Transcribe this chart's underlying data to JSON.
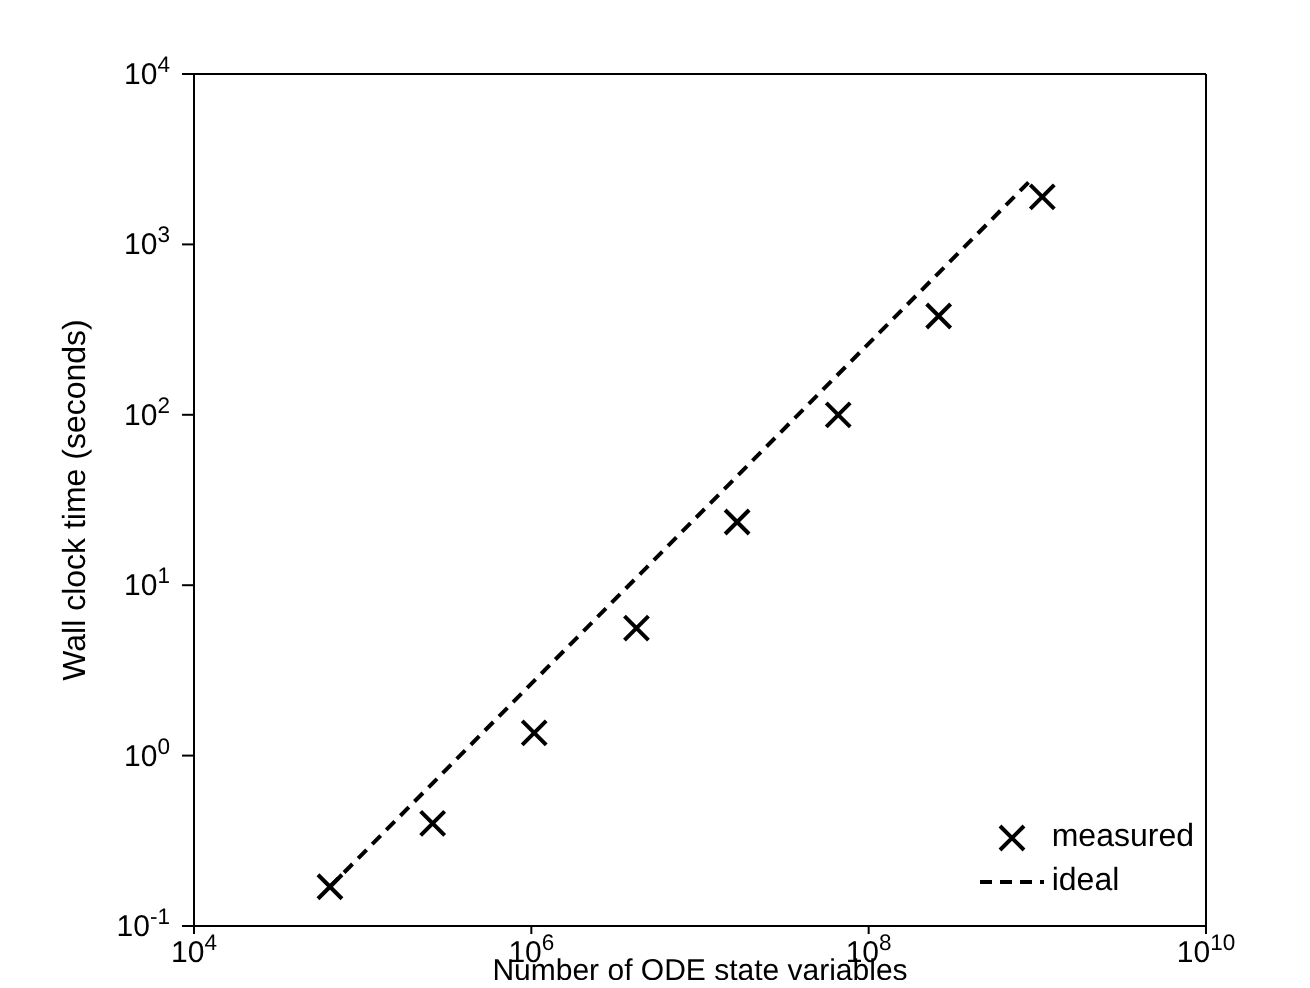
{
  "chart_data": {
    "type": "scatter",
    "xlabel": "Number of ODE state variables",
    "ylabel": "Wall clock time (seconds)",
    "log": "xy",
    "xlim": [
      10000,
      10000000000
    ],
    "ylim": [
      0.1,
      10000
    ],
    "xticks": [
      {
        "value": 10000,
        "label": "10$^{4}$"
      },
      {
        "value": 1000000,
        "label": "10$^{6}$"
      },
      {
        "value": 100000000,
        "label": "10$^{8}$"
      },
      {
        "value": 10000000000,
        "label": "10$^{10}$"
      }
    ],
    "yticks": [
      {
        "value": 0.1,
        "label": "10$^{-1}$"
      },
      {
        "value": 1,
        "label": "10$^{0}$"
      },
      {
        "value": 10,
        "label": "10$^{1}$"
      },
      {
        "value": 100,
        "label": "10$^{2}$"
      },
      {
        "value": 1000,
        "label": "10$^{3}$"
      },
      {
        "value": 10000,
        "label": "10$^{4}$"
      }
    ],
    "legend": "bottom right",
    "series": [
      {
        "name": "measured",
        "type": "scatter",
        "marker": "cross",
        "color": "#000000",
        "x": [
          64000,
          260000,
          1040000,
          4200000,
          16600000,
          66000000,
          260000000,
          1070000000
        ],
        "values": [
          0.17,
          0.4,
          1.36,
          5.6,
          23.5,
          100,
          380,
          1900
        ]
      },
      {
        "name": "ideal",
        "type": "line",
        "marker": "none",
        "line_style": "dashed",
        "color": "#000000",
        "x": [
          64000,
          920000000
        ],
        "values": [
          0.17,
          2400
        ]
      }
    ]
  }
}
